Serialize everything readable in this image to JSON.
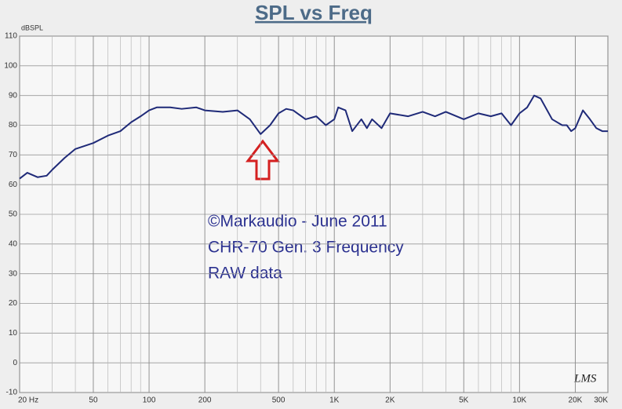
{
  "chart_data": {
    "type": "line",
    "title": "SPL vs Freq",
    "y_label": "dBSPL",
    "annotations": [
      "©Markaudio - June 2011",
      "CHR-70 Gen. 3 Frequency",
      "RAW data"
    ],
    "watermark": "LMS",
    "log_x": true,
    "grid": true,
    "color": "#1f2a78",
    "xlim": [
      20,
      30000
    ],
    "ylim": [
      -10,
      110
    ],
    "xticks": [
      {
        "value": 20,
        "label": "20 Hz"
      },
      50,
      100,
      200,
      500,
      {
        "value": 1000,
        "label": "1K"
      },
      {
        "value": 2000,
        "label": "2K"
      },
      {
        "value": 5000,
        "label": "5K"
      },
      {
        "value": 10000,
        "label": "10K"
      },
      {
        "value": 20000,
        "label": "20K"
      },
      {
        "value": 30000,
        "label": "30K"
      }
    ],
    "x_minor_ticks": [
      30,
      40,
      60,
      70,
      80,
      90,
      300,
      400,
      600,
      700,
      800,
      900,
      3000,
      4000,
      6000,
      7000,
      8000,
      9000
    ],
    "yticks": [
      -10,
      0,
      10,
      20,
      30,
      40,
      50,
      60,
      70,
      80,
      90,
      100,
      110
    ],
    "x": [
      20,
      22,
      25,
      28,
      30,
      35,
      40,
      50,
      60,
      70,
      80,
      90,
      100,
      110,
      130,
      150,
      180,
      200,
      250,
      300,
      350,
      400,
      450,
      500,
      550,
      600,
      700,
      800,
      900,
      1000,
      1050,
      1150,
      1250,
      1400,
      1500,
      1600,
      1800,
      2000,
      2500,
      3000,
      3500,
      4000,
      5000,
      6000,
      7000,
      8000,
      9000,
      10000,
      11000,
      12000,
      13000,
      15000,
      17000,
      18000,
      19000,
      20000,
      22000,
      24000,
      26000,
      28000,
      30000
    ],
    "values": [
      62,
      64,
      62.5,
      63,
      65,
      69,
      72,
      74,
      76.5,
      78,
      81,
      83,
      85,
      86,
      86,
      85.5,
      86,
      85,
      84.5,
      85,
      82,
      77,
      80,
      84,
      85.5,
      85,
      82,
      83,
      80,
      82,
      86,
      85,
      78,
      82,
      79,
      82,
      79,
      84,
      83,
      84.5,
      83,
      84.5,
      82,
      84,
      83,
      84,
      80,
      84,
      86,
      90,
      89,
      82,
      80,
      80,
      78,
      79,
      85,
      82,
      79,
      78,
      78
    ]
  }
}
